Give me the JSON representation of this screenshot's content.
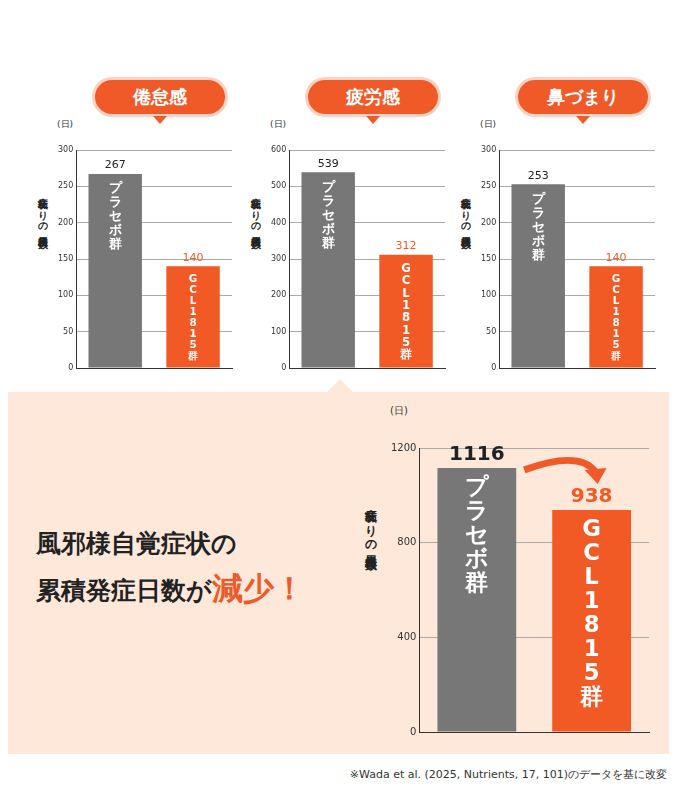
{
  "chart_data": [
    {
      "type": "bar",
      "title": "倦怠感",
      "ylabel": "症状ありの累積日数",
      "yunit": "(日)",
      "categories": [
        "プラセボ群",
        "GCL1815群"
      ],
      "values": [
        267,
        140
      ],
      "colors": [
        "#777777",
        "#f15a24"
      ],
      "ylim": [
        0,
        300
      ],
      "yticks": [
        0,
        50,
        100,
        150,
        200,
        250,
        300
      ],
      "grid": true,
      "data_labels": true,
      "tick_labels": "y"
    },
    {
      "type": "bar",
      "title": "疲労感",
      "ylabel": "症状ありの累積日数",
      "yunit": "(日)",
      "categories": [
        "プラセボ群",
        "GCL1815群"
      ],
      "values": [
        539,
        312
      ],
      "colors": [
        "#777777",
        "#f15a24"
      ],
      "ylim": [
        0,
        600
      ],
      "yticks": [
        0,
        100,
        200,
        300,
        400,
        500,
        600
      ],
      "grid": true,
      "data_labels": true,
      "tick_labels": "y"
    },
    {
      "type": "bar",
      "title": "鼻づまり",
      "ylabel": "症状ありの累積日数",
      "yunit": "(日)",
      "categories": [
        "プラセボ群",
        "GCL1815群"
      ],
      "values": [
        253,
        140
      ],
      "colors": [
        "#777777",
        "#f15a24"
      ],
      "ylim": [
        0,
        300
      ],
      "yticks": [
        0,
        50,
        100,
        150,
        200,
        250,
        300
      ],
      "grid": true,
      "data_labels": true,
      "tick_labels": "y"
    },
    {
      "type": "bar",
      "ylabel": "症状ありの累積日数",
      "yunit": "(日)",
      "categories": [
        "プラセボ群",
        "GCL1815群"
      ],
      "values": [
        1116,
        938
      ],
      "colors": [
        "#777777",
        "#f15a24"
      ],
      "ylim": [
        0,
        1200
      ],
      "yticks": [
        0,
        400,
        800,
        1200
      ],
      "grid": true,
      "data_labels": true,
      "tick_labels": "y"
    }
  ],
  "headline": {
    "lines": [
      "風邪様自覚症状の",
      "累積発症日数が"
    ],
    "emphasis": "減少！"
  },
  "footnote": "※Wada et al. (2025, Nutrients, 17, 101)のデータを基に改変"
}
